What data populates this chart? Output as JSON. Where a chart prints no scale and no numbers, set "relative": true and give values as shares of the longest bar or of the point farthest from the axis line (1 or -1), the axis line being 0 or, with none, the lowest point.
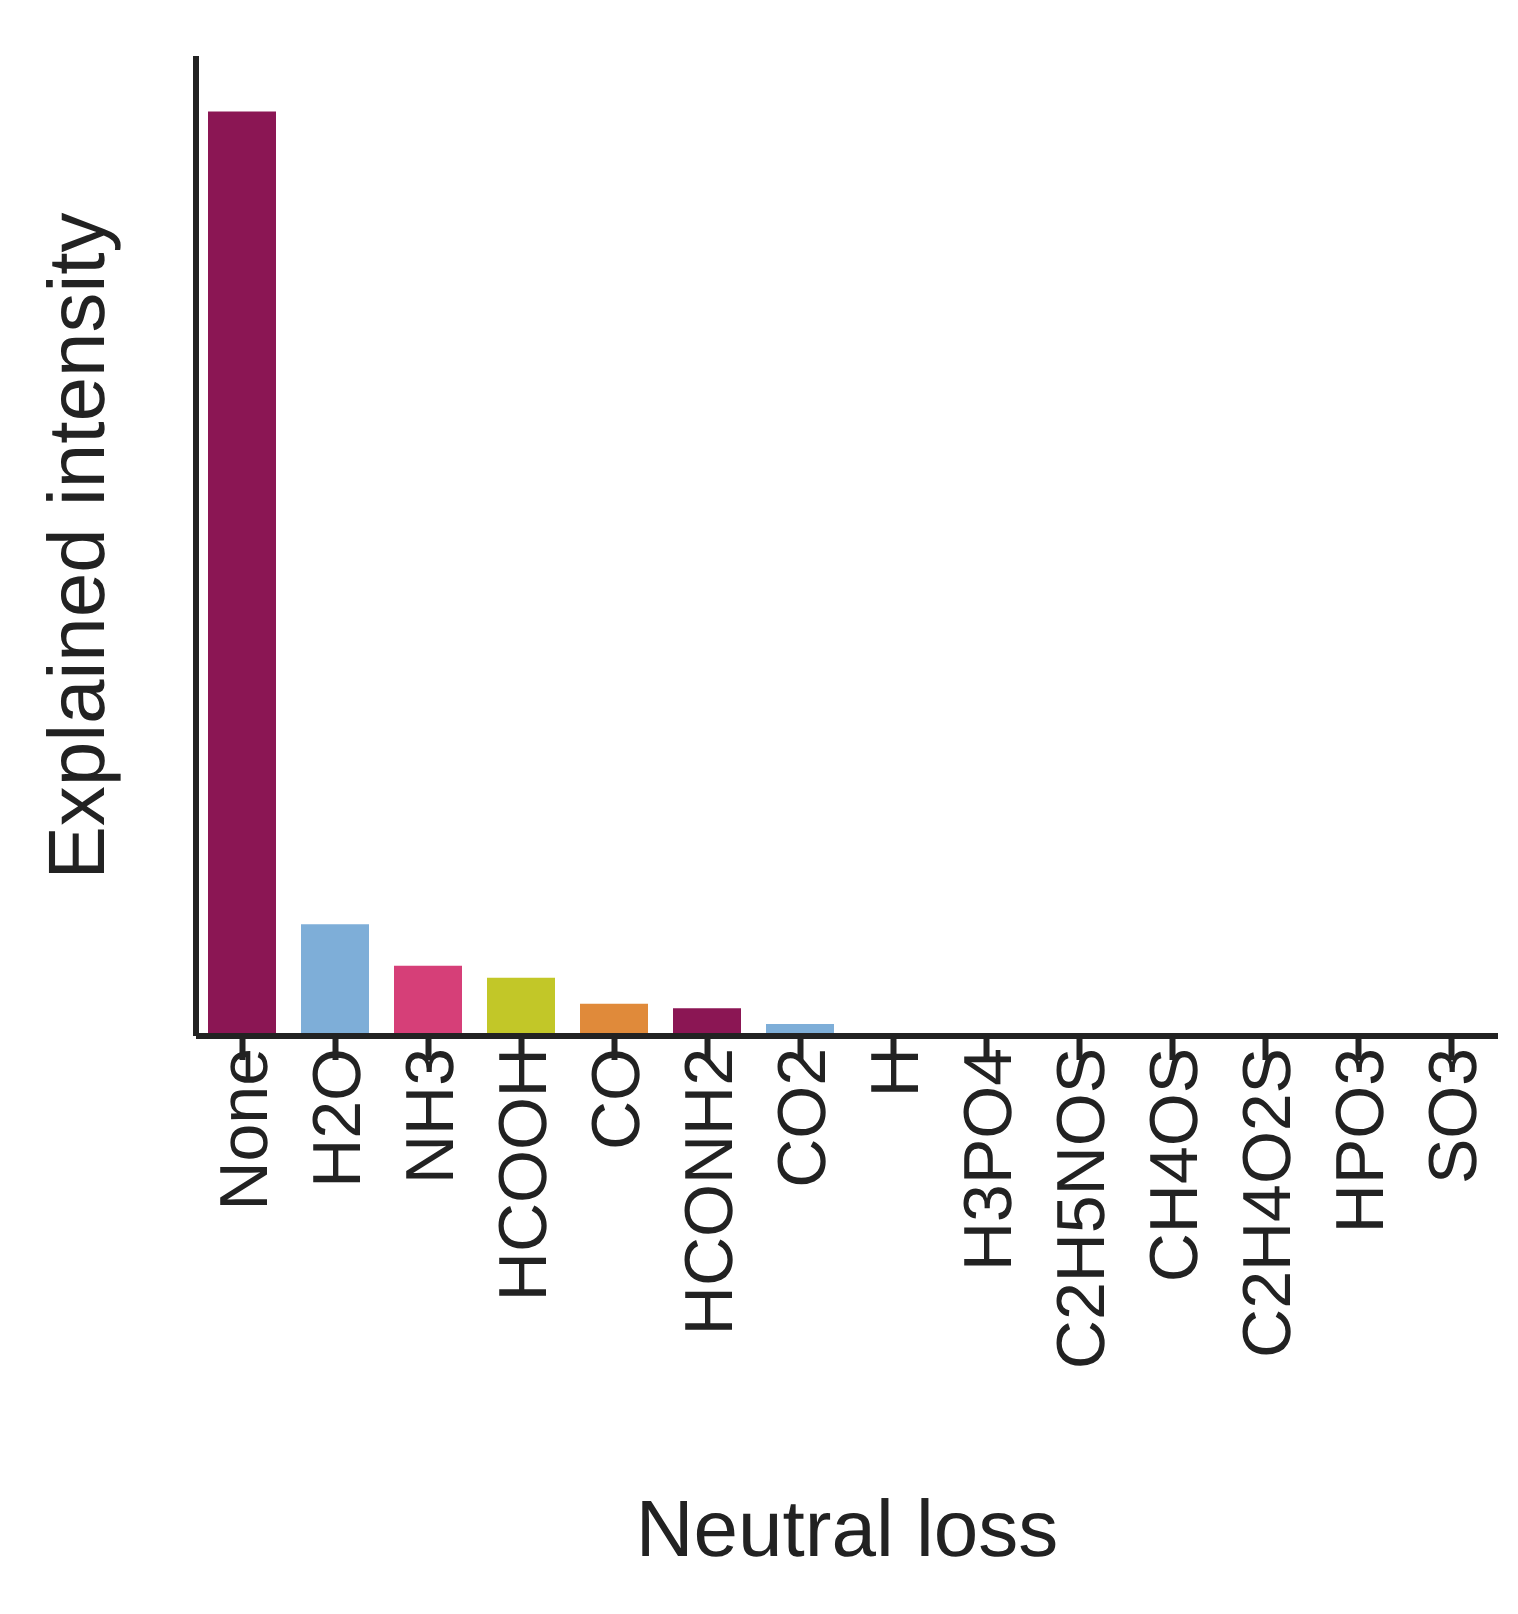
{
  "chart_data": {
    "type": "bar",
    "relative": true,
    "xlabel": "Neutral loss",
    "ylabel": "Explained intensity",
    "categories": [
      "None",
      "H2O",
      "NH3",
      "HCOOH",
      "CO",
      "HCONH2",
      "CO2",
      "H",
      "H3PO4",
      "C2H5NOS",
      "CH4OS",
      "C2H4O2S",
      "HPO3",
      "SO3"
    ],
    "values": [
      1,
      0.121,
      0.076,
      0.063,
      0.035,
      0.03,
      0.013,
      0.003,
      0,
      0,
      0,
      0,
      0,
      0
    ],
    "colors": [
      "#8b1654",
      "#7eaed8",
      "#d63f78",
      "#c2c728",
      "#e08a3a",
      "#8b1654",
      "#7eaed8",
      "#d63f78",
      "#c2c728",
      "#e08a3a",
      "#8b1654",
      "#7eaed8",
      "#d63f78",
      "#c2c728"
    ],
    "grid": false,
    "legend": false
  }
}
